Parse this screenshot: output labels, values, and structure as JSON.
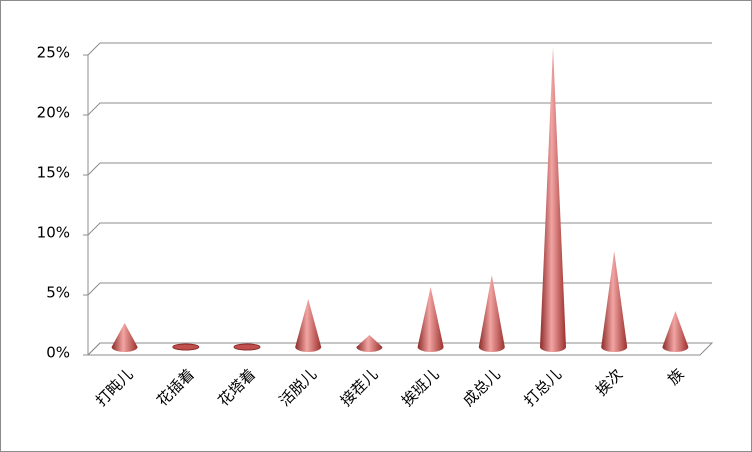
{
  "chart_data": {
    "type": "cone",
    "categories": [
      "打盹儿",
      "花插着",
      "花塔着",
      "活脱儿",
      "接茬儿",
      "挨班儿",
      "成总儿",
      "打总儿",
      "挨次",
      "族"
    ],
    "values": [
      2,
      0,
      0,
      4,
      1,
      5,
      6,
      25,
      8,
      3
    ],
    "color": "#c0504d",
    "ylim": [
      0,
      25
    ],
    "yticks": [
      {
        "value": 0,
        "label": "0%"
      },
      {
        "value": 5,
        "label": "5%"
      },
      {
        "value": 10,
        "label": "10%"
      },
      {
        "value": 15,
        "label": "15%"
      },
      {
        "value": 20,
        "label": "20%"
      },
      {
        "value": 25,
        "label": "25%"
      }
    ],
    "grid": true
  }
}
